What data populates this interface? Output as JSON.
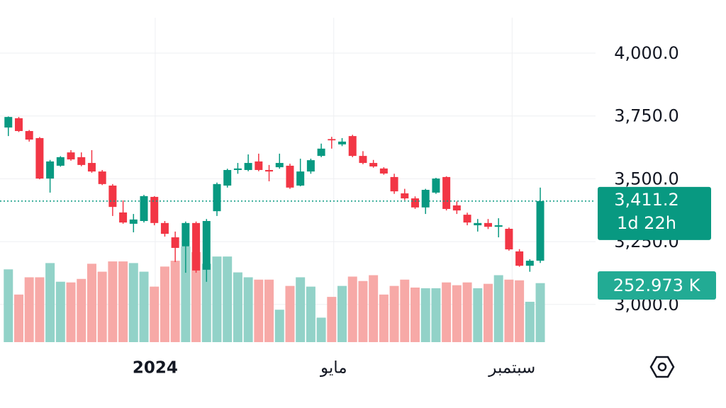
{
  "chart_data": {
    "type": "candlestick",
    "ylim": [
      2850,
      4141
    ],
    "xlim": [
      -0.8,
      56.3
    ],
    "yticks": [
      {
        "value": 3000,
        "label": "3,000.0"
      },
      {
        "value": 3250,
        "label": "3,250.0"
      },
      {
        "value": 3500,
        "label": "3,500.0"
      },
      {
        "value": 3750,
        "label": "3,750.0"
      },
      {
        "value": 4000,
        "label": "4,000.0"
      }
    ],
    "xticks": [
      {
        "value": 14.08,
        "label": "2024"
      },
      {
        "value": 31.2,
        "label": "مايو"
      },
      {
        "value": 48.3,
        "label": "سبتمبر"
      }
    ],
    "grid": true,
    "up_color": "#089981",
    "down_color": "#f23645",
    "up_volume_color": "#92d2c8",
    "down_volume_color": "#f7a9a7",
    "candles": [
      {
        "o": 3704,
        "h": 3748,
        "l": 3670,
        "c": 3746
      },
      {
        "o": 3741,
        "h": 3746,
        "l": 3686,
        "c": 3690
      },
      {
        "o": 3690,
        "h": 3694,
        "l": 3648,
        "c": 3656
      },
      {
        "o": 3662,
        "h": 3666,
        "l": 3498,
        "c": 3501
      },
      {
        "o": 3501,
        "h": 3575,
        "l": 3445,
        "c": 3569
      },
      {
        "o": 3552,
        "h": 3590,
        "l": 3548,
        "c": 3586
      },
      {
        "o": 3605,
        "h": 3614,
        "l": 3572,
        "c": 3577
      },
      {
        "o": 3586,
        "h": 3605,
        "l": 3550,
        "c": 3555
      },
      {
        "o": 3563,
        "h": 3614,
        "l": 3524,
        "c": 3529
      },
      {
        "o": 3529,
        "h": 3535,
        "l": 3475,
        "c": 3479
      },
      {
        "o": 3473,
        "h": 3479,
        "l": 3352,
        "c": 3388
      },
      {
        "o": 3366,
        "h": 3414,
        "l": 3321,
        "c": 3326
      },
      {
        "o": 3321,
        "h": 3360,
        "l": 3287,
        "c": 3338
      },
      {
        "o": 3332,
        "h": 3436,
        "l": 3326,
        "c": 3431
      },
      {
        "o": 3428,
        "h": 3431,
        "l": 3315,
        "c": 3324
      },
      {
        "o": 3324,
        "h": 3332,
        "l": 3270,
        "c": 3281
      },
      {
        "o": 3267,
        "h": 3290,
        "l": 3169,
        "c": 3225
      },
      {
        "o": 3231,
        "h": 3330,
        "l": 3126,
        "c": 3324
      },
      {
        "o": 3324,
        "h": 3330,
        "l": 3126,
        "c": 3135
      },
      {
        "o": 3138,
        "h": 3340,
        "l": 3090,
        "c": 3332
      },
      {
        "o": 3371,
        "h": 3485,
        "l": 3352,
        "c": 3479
      },
      {
        "o": 3473,
        "h": 3540,
        "l": 3465,
        "c": 3535
      },
      {
        "o": 3535,
        "h": 3563,
        "l": 3520,
        "c": 3541
      },
      {
        "o": 3535,
        "h": 3597,
        "l": 3530,
        "c": 3563
      },
      {
        "o": 3569,
        "h": 3600,
        "l": 3530,
        "c": 3535
      },
      {
        "o": 3535,
        "h": 3555,
        "l": 3490,
        "c": 3529
      },
      {
        "o": 3546,
        "h": 3600,
        "l": 3540,
        "c": 3563
      },
      {
        "o": 3552,
        "h": 3560,
        "l": 3460,
        "c": 3465
      },
      {
        "o": 3473,
        "h": 3580,
        "l": 3470,
        "c": 3529
      },
      {
        "o": 3529,
        "h": 3580,
        "l": 3520,
        "c": 3574
      },
      {
        "o": 3591,
        "h": 3640,
        "l": 3586,
        "c": 3620
      },
      {
        "o": 3658,
        "h": 3667,
        "l": 3620,
        "c": 3653
      },
      {
        "o": 3637,
        "h": 3662,
        "l": 3630,
        "c": 3648
      },
      {
        "o": 3670,
        "h": 3675,
        "l": 3586,
        "c": 3591
      },
      {
        "o": 3591,
        "h": 3610,
        "l": 3558,
        "c": 3563
      },
      {
        "o": 3563,
        "h": 3575,
        "l": 3544,
        "c": 3549
      },
      {
        "o": 3541,
        "h": 3546,
        "l": 3516,
        "c": 3521
      },
      {
        "o": 3507,
        "h": 3520,
        "l": 3440,
        "c": 3450
      },
      {
        "o": 3442,
        "h": 3460,
        "l": 3415,
        "c": 3422
      },
      {
        "o": 3422,
        "h": 3430,
        "l": 3380,
        "c": 3386
      },
      {
        "o": 3386,
        "h": 3460,
        "l": 3360,
        "c": 3456
      },
      {
        "o": 3445,
        "h": 3504,
        "l": 3440,
        "c": 3501
      },
      {
        "o": 3507,
        "h": 3510,
        "l": 3374,
        "c": 3380
      },
      {
        "o": 3394,
        "h": 3410,
        "l": 3360,
        "c": 3374
      },
      {
        "o": 3357,
        "h": 3365,
        "l": 3315,
        "c": 3326
      },
      {
        "o": 3315,
        "h": 3340,
        "l": 3290,
        "c": 3324
      },
      {
        "o": 3324,
        "h": 3340,
        "l": 3300,
        "c": 3309
      },
      {
        "o": 3309,
        "h": 3343,
        "l": 3267,
        "c": 3315
      },
      {
        "o": 3301,
        "h": 3306,
        "l": 3214,
        "c": 3219
      },
      {
        "o": 3211,
        "h": 3220,
        "l": 3150,
        "c": 3154
      },
      {
        "o": 3154,
        "h": 3180,
        "l": 3130,
        "c": 3174
      },
      {
        "o": 3174,
        "h": 3465,
        "l": 3165,
        "c": 3411.2
      }
    ],
    "volume": [
      312,
      204,
      278,
      278,
      339,
      259,
      256,
      271,
      336,
      302,
      346,
      346,
      339,
      302,
      238,
      324,
      349,
      410,
      386,
      336,
      367,
      367,
      299,
      278,
      268,
      268,
      139,
      241,
      278,
      238,
      105,
      194,
      241,
      281,
      262,
      287,
      204,
      241,
      268,
      234,
      231,
      231,
      256,
      244,
      256,
      231,
      250,
      287,
      268,
      265,
      173,
      252.973
    ],
    "last_price": {
      "value": 3411.2,
      "label": "3,411.2"
    },
    "countdown": "1d 22h",
    "last_volume": {
      "value": 252.973,
      "label": "252.973 K"
    }
  }
}
